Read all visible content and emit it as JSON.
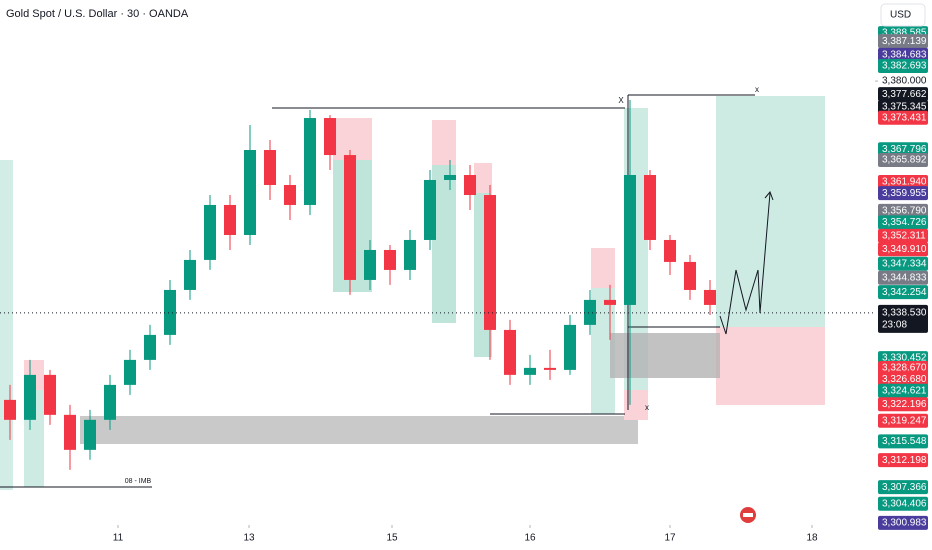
{
  "chart_data": {
    "type": "candlestick",
    "title": "Gold Spot / U.S. Dollar · 30 · OANDA",
    "currency": "USD",
    "up_color": "#089981",
    "down_color": "#f23645",
    "x": [
      10,
      30,
      50,
      70,
      90,
      110,
      130,
      150,
      170,
      190,
      210,
      230,
      250,
      270,
      290,
      310,
      330,
      350,
      370,
      390,
      410,
      430,
      450,
      470,
      490,
      510,
      530,
      550,
      570,
      590,
      610,
      630,
      650,
      670,
      690,
      710
    ],
    "open": [
      3322.98,
      3319.41,
      3327.45,
      3320.3,
      3314.04,
      3319.41,
      3325.66,
      3330.13,
      3334.6,
      3342.64,
      3348.01,
      3357.84,
      3352.47,
      3367.67,
      3361.41,
      3357.84,
      3373.39,
      3366.77,
      3344.43,
      3349.79,
      3346.22,
      3351.58,
      3362.31,
      3363.2,
      3359.62,
      3335.49,
      3327.45,
      3328.7,
      3328.34,
      3336.39,
      3340.86,
      3339.96,
      3363.2,
      3351.58,
      3347.65,
      3342.64
    ],
    "high": [
      3325.66,
      3330.13,
      3328.34,
      3322.09,
      3321.19,
      3327.45,
      3331.92,
      3336.39,
      3344.43,
      3349.79,
      3359.62,
      3359.62,
      3372.14,
      3369.46,
      3363.2,
      3374.82,
      3373.92,
      3367.67,
      3351.58,
      3350.69,
      3353.37,
      3364.09,
      3365.88,
      3364.99,
      3361.41,
      3337.28,
      3331.02,
      3331.92,
      3338.17,
      3342.64,
      3343.54,
      3376.61,
      3364.09,
      3352.47,
      3348.9,
      3344.43
    ],
    "low": [
      3315.83,
      3317.62,
      3318.51,
      3310.47,
      3312.26,
      3317.62,
      3323.87,
      3328.34,
      3332.81,
      3340.86,
      3346.22,
      3349.79,
      3350.69,
      3358.73,
      3355.16,
      3356.05,
      3364.09,
      3341.75,
      3342.64,
      3343.54,
      3344.43,
      3349.79,
      3360.52,
      3356.94,
      3330.13,
      3325.66,
      3325.66,
      3326.56,
      3327.45,
      3334.6,
      3333.71,
      3322.09,
      3349.79,
      3345.32,
      3340.86,
      3338.17
    ],
    "close": [
      3319.41,
      3327.45,
      3320.3,
      3314.04,
      3319.41,
      3325.66,
      3330.13,
      3334.6,
      3342.64,
      3348.01,
      3357.84,
      3352.47,
      3367.67,
      3361.41,
      3357.84,
      3373.39,
      3366.77,
      3344.43,
      3349.79,
      3346.22,
      3351.58,
      3362.31,
      3363.2,
      3359.62,
      3335.49,
      3327.45,
      3328.7,
      3328.34,
      3336.39,
      3340.86,
      3339.96,
      3363.2,
      3351.58,
      3347.65,
      3342.64,
      3339.96
    ],
    "xlim": [
      0,
      875
    ],
    "xticks": [
      {
        "value": 118,
        "label": "11"
      },
      {
        "value": 249,
        "label": "13"
      },
      {
        "value": 392,
        "label": "15"
      },
      {
        "value": 530,
        "label": "16"
      },
      {
        "value": 670,
        "label": "17"
      },
      {
        "value": 812,
        "label": "18"
      }
    ],
    "ylim": [
      3300.6,
      3394.5
    ],
    "yticks": [
      {
        "value": 3380,
        "label": "3,380.000"
      }
    ],
    "price_tags": [
      {
        "value": 3388.585,
        "label": "3,388.585",
        "color": "#089981"
      },
      {
        "value": 3387.139,
        "label": "3,387.139",
        "color": "#787b86"
      },
      {
        "value": 3384.683,
        "label": "3,384.683",
        "color": "#4a3c9c"
      },
      {
        "value": 3382.693,
        "label": "3,382.693",
        "color": "#089981"
      },
      {
        "value": 3377.662,
        "label": "3,377.662",
        "color": "#131722"
      },
      {
        "value": 3375.345,
        "label": "3,375.345",
        "color": "#131722"
      },
      {
        "value": 3373.431,
        "label": "3,373.431",
        "color": "#f23645"
      },
      {
        "value": 3367.796,
        "label": "3,367.796",
        "color": "#089981"
      },
      {
        "value": 3365.892,
        "label": "3,365.892",
        "color": "#787b86"
      },
      {
        "value": 3361.94,
        "label": "3,361.940",
        "color": "#f23645"
      },
      {
        "value": 3359.955,
        "label": "3,359.955",
        "color": "#4a3c9c"
      },
      {
        "value": 3356.79,
        "label": "3,356.790",
        "color": "#787b86"
      },
      {
        "value": 3354.726,
        "label": "3,354.726",
        "color": "#089981"
      },
      {
        "value": 3352.311,
        "label": "3,352.311",
        "color": "#f23645"
      },
      {
        "value": 3349.91,
        "label": "3,349.910",
        "color": "#f23645"
      },
      {
        "value": 3347.334,
        "label": "3,347.334",
        "color": "#089981"
      },
      {
        "value": 3344.833,
        "label": "3,344.833",
        "color": "#787b86"
      },
      {
        "value": 3342.254,
        "label": "3,342.254",
        "color": "#089981"
      },
      {
        "value": 3330.452,
        "label": "3,330.452",
        "color": "#089981"
      },
      {
        "value": 3328.67,
        "label": "3,328.670",
        "color": "#f23645"
      },
      {
        "value": 3326.68,
        "label": "3,326.680",
        "color": "#f23645"
      },
      {
        "value": 3324.621,
        "label": "3,324.621",
        "color": "#089981"
      },
      {
        "value": 3322.196,
        "label": "3,322.196",
        "color": "#f23645"
      },
      {
        "value": 3319.247,
        "label": "3,319.247",
        "color": "#f23645"
      },
      {
        "value": 3315.548,
        "label": "3,315.548",
        "color": "#089981"
      },
      {
        "value": 3312.198,
        "label": "3,312.198",
        "color": "#f23645"
      },
      {
        "value": 3307.366,
        "label": "3,307.366",
        "color": "#089981"
      },
      {
        "value": 3304.406,
        "label": "3,304.406",
        "color": "#089981"
      },
      {
        "value": 3300.983,
        "label": "3,300.983",
        "color": "#4a3c9c"
      }
    ],
    "last_price": {
      "value": 3338.53,
      "label": "3,338.530",
      "countdown": "23:08",
      "color": "#131722"
    },
    "annotations": [
      "08 - IMB",
      "X",
      "x",
      "x"
    ]
  }
}
